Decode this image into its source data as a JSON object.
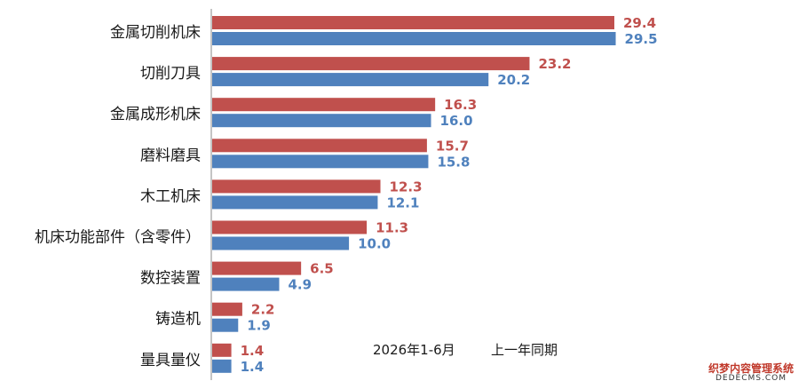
{
  "chart_data": {
    "type": "bar",
    "orientation": "horizontal",
    "categories": [
      "金属切削机床",
      "切削刀具",
      "金属成形机床",
      "磨料磨具",
      "木工机床",
      "机床功能部件（含零件）",
      "数控装置",
      "铸造机",
      "量具量仪"
    ],
    "series": [
      {
        "name": "2026年1-6月",
        "color": "#c0504d",
        "values": [
          29.4,
          23.2,
          16.3,
          15.7,
          12.3,
          11.3,
          6.5,
          2.2,
          1.4
        ]
      },
      {
        "name": "上一年同期",
        "color": "#4f81bd",
        "values": [
          29.5,
          20.2,
          16.0,
          15.8,
          12.1,
          10.0,
          4.9,
          1.9,
          1.4
        ]
      }
    ],
    "xlim": [
      0,
      30
    ],
    "grid": false,
    "legend_position": "bottom-center"
  },
  "watermark": {
    "line1": "织梦内容管理系统",
    "line2": "DEDECMS.COM"
  }
}
